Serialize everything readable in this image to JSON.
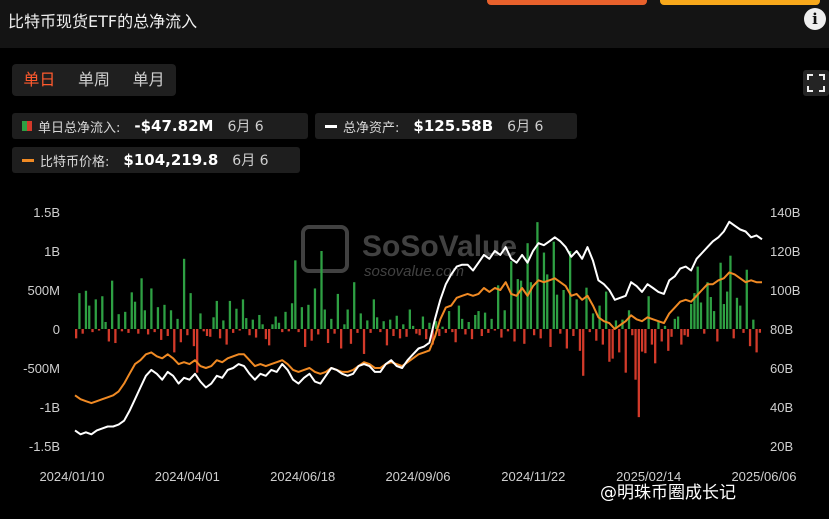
{
  "header": {
    "title": "比特币现货ETF的总净流入"
  },
  "range_tabs": [
    {
      "label": "单日",
      "active": true
    },
    {
      "label": "单周",
      "active": false
    },
    {
      "label": "单月",
      "active": false
    }
  ],
  "stats": {
    "net_inflow": {
      "label": "单日总净流入:",
      "value": "-$47.82M",
      "date": "6月 6"
    },
    "net_assets": {
      "label": "总净资产:",
      "value": "$125.58B",
      "date": "6月 6"
    },
    "btc_price": {
      "label": "比特币价格:",
      "value": "$104,219.8",
      "date": "6月 6"
    }
  },
  "colors": {
    "positive": "#2ea043",
    "negative": "#d23a2a",
    "assets_line": "#ffffff",
    "price_line": "#f08a24",
    "tab_active": "#ff5a2e",
    "background": "#000000"
  },
  "watermark": {
    "brand": "SoSoValue",
    "url": "sosovalue.com",
    "footer": "@明珠币圈成长记"
  },
  "chart_data": {
    "type": "bar",
    "x_tick_labels": [
      "2024/01/10",
      "2024/04/01",
      "2024/06/18",
      "2024/09/06",
      "2024/11/22",
      "2025/02/14",
      "2025/06/06"
    ],
    "left_axis_ticks": [
      "1.5B",
      "1B",
      "500M",
      "0",
      "-500M",
      "-1B",
      "-1.5B"
    ],
    "left_axis_range": [
      -1500,
      1500
    ],
    "right_axis_ticks": [
      "140B",
      "120B",
      "100B",
      "80B",
      "60B",
      "40B",
      "20B"
    ],
    "right_axis_range": [
      20,
      140
    ],
    "grid": false,
    "series": [
      {
        "name": "单日总净流入",
        "type": "bar",
        "unit": "M USD",
        "values": [
          -120,
          460,
          -60,
          490,
          300,
          -40,
          380,
          -20,
          420,
          90,
          -160,
          620,
          -180,
          190,
          -30,
          220,
          -50,
          470,
          350,
          -60,
          650,
          240,
          -70,
          520,
          -40,
          280,
          -140,
          310,
          -90,
          240,
          -300,
          130,
          -170,
          900,
          -80,
          460,
          -220,
          -560,
          200,
          -30,
          -90,
          -100,
          150,
          360,
          -120,
          110,
          -200,
          360,
          -50,
          260,
          -20,
          380,
          140,
          -80,
          120,
          -110,
          180,
          60,
          -130,
          -210,
          60,
          160,
          80,
          -40,
          220,
          -30,
          330,
          880,
          -40,
          280,
          -230,
          310,
          -150,
          520,
          -70,
          1000,
          250,
          -180,
          130,
          -60,
          450,
          -250,
          60,
          250,
          -190,
          600,
          -50,
          200,
          -320,
          110,
          -50,
          380,
          150,
          -40,
          100,
          -210,
          120,
          -90,
          170,
          -120,
          60,
          -100,
          250,
          40,
          -60,
          -80,
          160,
          -130,
          80,
          -200,
          100,
          -90,
          30,
          -50,
          230,
          -40,
          -170,
          300,
          130,
          -70,
          90,
          -130,
          180,
          230,
          -90,
          210,
          -50,
          130,
          -20,
          560,
          -110,
          240,
          -30,
          870,
          -160,
          640,
          620,
          -190,
          1100,
          600,
          -80,
          1370,
          -120,
          980,
          700,
          -230,
          1120,
          440,
          -60,
          500,
          -250,
          1000,
          -90,
          380,
          -280,
          -600,
          530,
          -40,
          200,
          -150,
          300,
          -200,
          480,
          -420,
          -380,
          110,
          -300,
          120,
          -560,
          240,
          -80,
          -650,
          -1130,
          -290,
          -310,
          420,
          -200,
          -440,
          90,
          -160,
          40,
          -280,
          -100,
          130,
          160,
          -200,
          -80,
          -100,
          320,
          460,
          800,
          340,
          -60,
          600,
          410,
          230,
          -160,
          850,
          320,
          480,
          940,
          -120,
          400,
          300,
          -50,
          760,
          -220,
          120,
          -300,
          -48
        ]
      },
      {
        "name": "总净资产",
        "type": "line",
        "unit": "B USD",
        "values": [
          28,
          26,
          27,
          26,
          28,
          29,
          30,
          30,
          31,
          33,
          38,
          44,
          50,
          56,
          59,
          57,
          54,
          58,
          56,
          52,
          55,
          54,
          57,
          53,
          50,
          52,
          56,
          55,
          59,
          60,
          62,
          61,
          57,
          54,
          57,
          56,
          59,
          58,
          62,
          59,
          54,
          52,
          55,
          57,
          53,
          52,
          56,
          60,
          59,
          57,
          56,
          57,
          61,
          62,
          61,
          58,
          58,
          62,
          64,
          61,
          60,
          64,
          67,
          70,
          71,
          73,
          85,
          95,
          103,
          108,
          112,
          113,
          113,
          110,
          114,
          118,
          116,
          120,
          118,
          122,
          116,
          114,
          118,
          114,
          120,
          124,
          123,
          125,
          127,
          125,
          122,
          117,
          120,
          116,
          122,
          115,
          105,
          103,
          100,
          95,
          96,
          97,
          104,
          102,
          99,
          103,
          101,
          99,
          98,
          105,
          107,
          111,
          112,
          110,
          116,
          119,
          122,
          125,
          127,
          130,
          135,
          133,
          131,
          130,
          127,
          128,
          126
        ]
      },
      {
        "name": "比特币价格",
        "type": "line",
        "unit": "K USD",
        "values": [
          46,
          44,
          43,
          42,
          43,
          44,
          45,
          46,
          48,
          52,
          57,
          62,
          64,
          67,
          68,
          66,
          65,
          67,
          65,
          62,
          63,
          62,
          64,
          61,
          60,
          61,
          64,
          63,
          65,
          66,
          67,
          67,
          64,
          61,
          62,
          61,
          62,
          63,
          64,
          62,
          59,
          58,
          59,
          60,
          58,
          57,
          58,
          60,
          59,
          58,
          58,
          59,
          61,
          63,
          62,
          60,
          60,
          62,
          63,
          62,
          61,
          63,
          65,
          67,
          68,
          69,
          76,
          85,
          91,
          92,
          96,
          97,
          98,
          97,
          98,
          101,
          99,
          101,
          100,
          104,
          98,
          97,
          101,
          97,
          102,
          105,
          104,
          105,
          106,
          104,
          102,
          97,
          98,
          95,
          97,
          92,
          86,
          84,
          83,
          80,
          82,
          84,
          87,
          85,
          84,
          86,
          85,
          84,
          83,
          88,
          91,
          94,
          95,
          94,
          97,
          100,
          103,
          103,
          105,
          106,
          109,
          108,
          106,
          104,
          105,
          104,
          104
        ]
      }
    ]
  }
}
